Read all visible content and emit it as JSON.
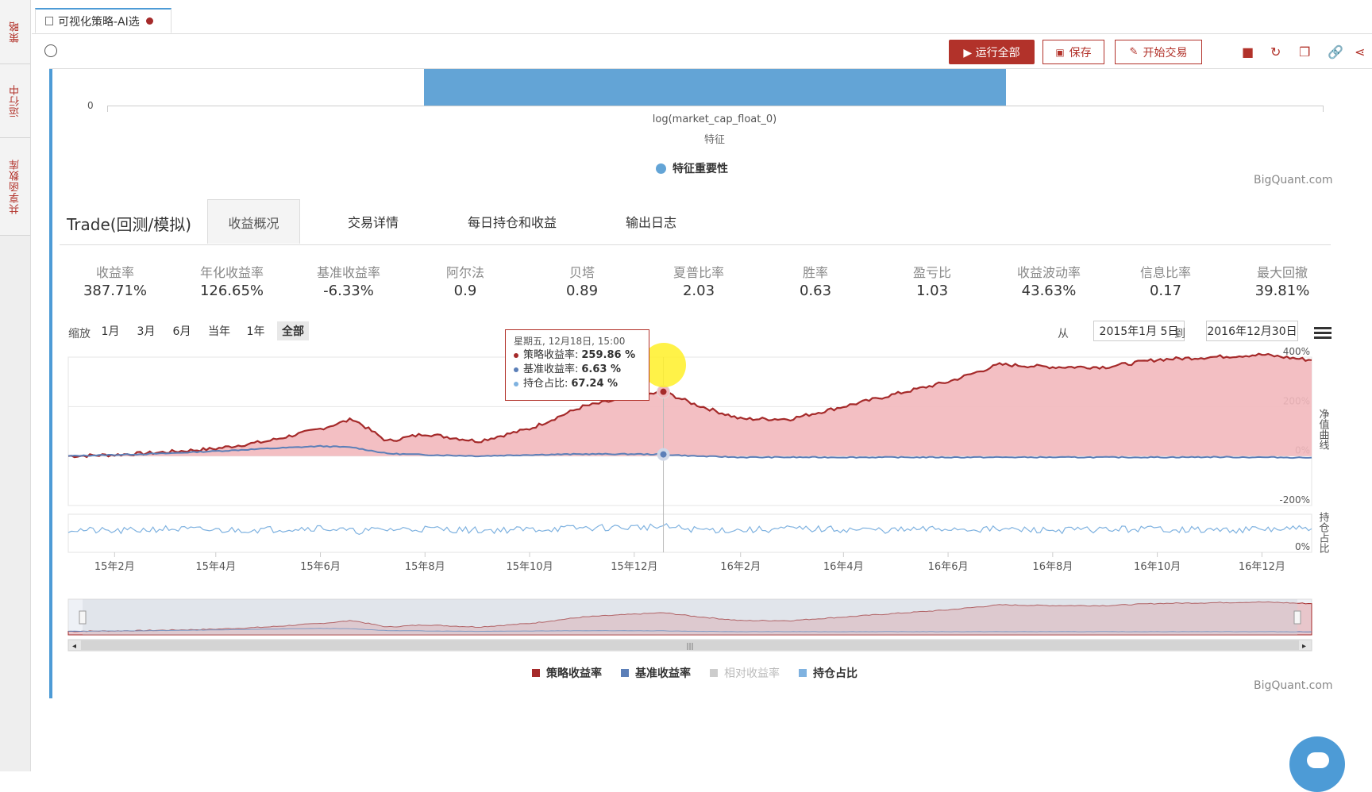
{
  "sidebar": {
    "items": [
      {
        "label": "策略"
      },
      {
        "label": "运行中"
      },
      {
        "label": "共享函数库"
      }
    ]
  },
  "tab": {
    "title": "可视化策略-AI选"
  },
  "toolbar": {
    "run_label": "▶ 运行全部",
    "save_label": "保存",
    "trade_label": "开始交易"
  },
  "feature_chart": {
    "zero_tick": "0",
    "category": "log(market_cap_float_0)",
    "xlabel": "特征",
    "legend": "特征重要性",
    "credits": "BigQuant.com"
  },
  "trade": {
    "title": "Trade(回测/模拟)",
    "tabs": [
      "收益概况",
      "交易详情",
      "每日持仓和收益",
      "输出日志"
    ]
  },
  "metrics": [
    {
      "label": "收益率",
      "value": "387.71%"
    },
    {
      "label": "年化收益率",
      "value": "126.65%"
    },
    {
      "label": "基准收益率",
      "value": "-6.33%"
    },
    {
      "label": "阿尔法",
      "value": "0.9"
    },
    {
      "label": "贝塔",
      "value": "0.89"
    },
    {
      "label": "夏普比率",
      "value": "2.03"
    },
    {
      "label": "胜率",
      "value": "0.63"
    },
    {
      "label": "盈亏比",
      "value": "1.03"
    },
    {
      "label": "收益波动率",
      "value": "43.63%"
    },
    {
      "label": "信息比率",
      "value": "0.17"
    },
    {
      "label": "最大回撤",
      "value": "39.81%"
    }
  ],
  "zoom": {
    "label": "缩放",
    "buttons": [
      "1月",
      "3月",
      "6月",
      "当年",
      "1年",
      "全部"
    ],
    "active": "全部",
    "from_label": "从",
    "from_date": "2015年1月 5日",
    "to_label": "到",
    "to_date": "2016年12月30日"
  },
  "tooltip": {
    "header": "星期五, 12月18日, 15:00",
    "rows": [
      {
        "name": "策略收益率:",
        "value": "259.86 %",
        "color": "#a52a2a"
      },
      {
        "name": "基准收益率:",
        "value": "6.63 %",
        "color": "#5b7fb8"
      },
      {
        "name": "持仓占比:",
        "value": "67.24 %",
        "color": "#7fb2e0"
      }
    ]
  },
  "chart_data": {
    "type": "line",
    "x": [
      "2015-01-05",
      "2015-02-01",
      "2015-03-01",
      "2015-04-01",
      "2015-05-01",
      "2015-06-01",
      "2015-06-20",
      "2015-07-10",
      "2015-08-01",
      "2015-09-01",
      "2015-10-01",
      "2015-11-01",
      "2015-12-01",
      "2015-12-18",
      "2016-01-05",
      "2016-02-01",
      "2016-03-01",
      "2016-04-01",
      "2016-05-01",
      "2016-06-01",
      "2016-07-01",
      "2016-08-01",
      "2016-09-01",
      "2016-10-01",
      "2016-11-01",
      "2016-12-01",
      "2016-12-30"
    ],
    "series": [
      {
        "name": "策略收益率",
        "color": "#a52a2a",
        "values": [
          0,
          5,
          15,
          30,
          60,
          110,
          150,
          60,
          90,
          60,
          110,
          200,
          240,
          259.86,
          210,
          150,
          150,
          200,
          250,
          300,
          370,
          360,
          360,
          390,
          400,
          410,
          387.71
        ]
      },
      {
        "name": "基准收益率",
        "color": "#5b7fb8",
        "values": [
          0,
          5,
          10,
          20,
          30,
          40,
          35,
          10,
          5,
          0,
          5,
          8,
          8,
          6.63,
          0,
          -5,
          -5,
          -5,
          -5,
          -5,
          -5,
          -5,
          -5,
          -5,
          -4,
          -5,
          -6.33
        ]
      },
      {
        "name": "持仓占比",
        "color": "#7fb2e0",
        "values": [
          60,
          55,
          62,
          58,
          60,
          65,
          55,
          60,
          62,
          58,
          60,
          64,
          66,
          67.24,
          60,
          58,
          62,
          60,
          58,
          62,
          60,
          58,
          60,
          62,
          58,
          60,
          62
        ]
      }
    ],
    "y_axis_ticks": [
      "400%",
      "200%",
      "0%",
      "-200%"
    ],
    "ylim": [
      -200,
      400
    ],
    "y2_ticks": [
      "0%"
    ],
    "x_ticks": [
      "15年2月",
      "15年4月",
      "15年6月",
      "15年8月",
      "15年10月",
      "15年12月",
      "16年2月",
      "16年4月",
      "16年6月",
      "16年8月",
      "16年10月",
      "16年12月"
    ],
    "right_labels": [
      "净值曲线",
      "持仓占比"
    ],
    "legend": [
      {
        "name": "策略收益率",
        "color": "#a52a2a",
        "active": true
      },
      {
        "name": "基准收益率",
        "color": "#5b7fb8",
        "active": true
      },
      {
        "name": "相对收益率",
        "color": "#cccccc",
        "active": false
      },
      {
        "name": "持仓占比",
        "color": "#7fb2e0",
        "active": true
      }
    ],
    "credits": "BigQuant.com"
  }
}
